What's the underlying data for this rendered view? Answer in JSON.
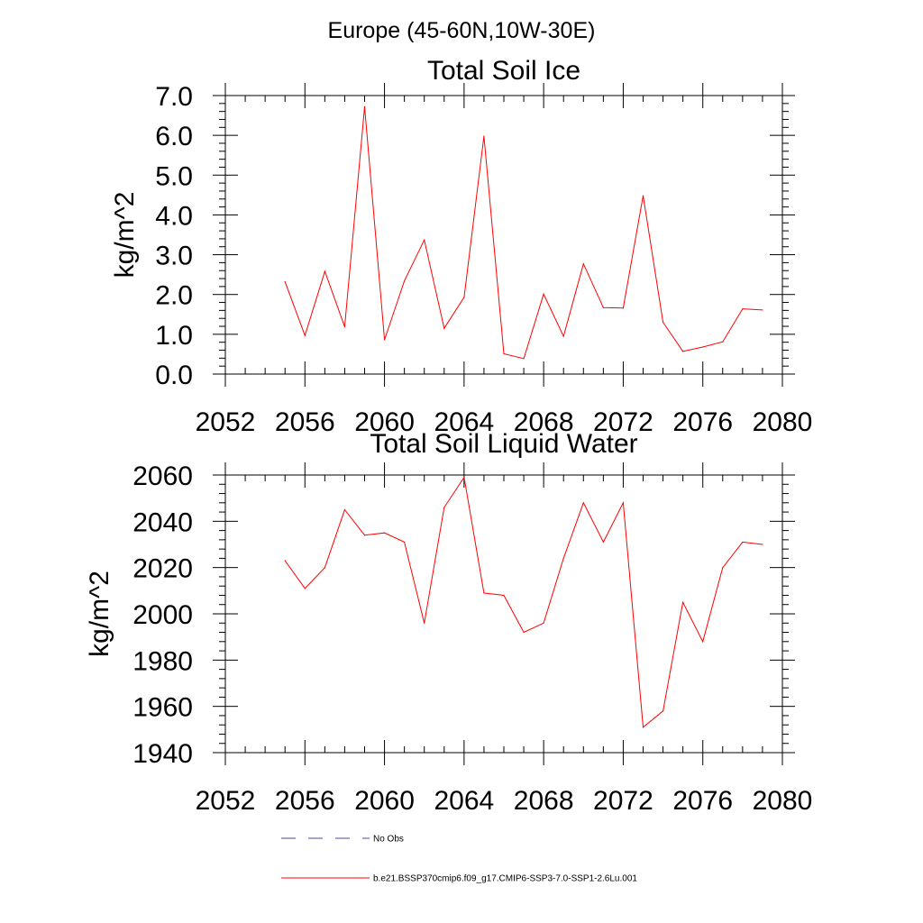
{
  "suptitle": "Europe (45-60N,10W-30E)",
  "legend": {
    "items": [
      {
        "label": "No Obs",
        "color": "#4a4aa8",
        "dash": true
      },
      {
        "label": "b.e21.BSSP370cmip6.f09_g17.CMIP6-SSP3-7.0-SSP1-2.6Lu.001",
        "color": "#ff0000",
        "dash": false
      }
    ]
  },
  "chart_data": [
    {
      "type": "line",
      "title": "Total Soil Ice",
      "xlabel": "",
      "ylabel": "kg/m^2",
      "xlim": [
        2052,
        2080
      ],
      "ylim": [
        0,
        7
      ],
      "xticks": [
        2052,
        2056,
        2060,
        2064,
        2068,
        2072,
        2076,
        2080
      ],
      "yticks": [
        "0.0",
        "1.0",
        "2.0",
        "3.0",
        "4.0",
        "5.0",
        "6.0",
        "7.0"
      ],
      "grid": false,
      "series": [
        {
          "color": "#ff0000",
          "x": [
            2055,
            2056,
            2057,
            2058,
            2059,
            2060,
            2061,
            2062,
            2063,
            2064,
            2065,
            2066,
            2067,
            2068,
            2069,
            2070,
            2071,
            2072,
            2073,
            2074,
            2075,
            2076,
            2077,
            2078,
            2079
          ],
          "values": [
            2.32,
            0.97,
            2.58,
            1.19,
            6.72,
            0.86,
            2.34,
            3.37,
            1.15,
            1.93,
            5.98,
            0.51,
            0.39,
            2.01,
            0.95,
            2.77,
            1.67,
            1.66,
            4.48,
            1.3,
            0.57,
            0.68,
            0.81,
            1.64,
            1.61
          ]
        }
      ]
    },
    {
      "type": "line",
      "title": "Total Soil Liquid Water",
      "xlabel": "",
      "ylabel": "kg/m^2",
      "xlim": [
        2052,
        2080
      ],
      "ylim": [
        1940,
        2060
      ],
      "xticks": [
        2052,
        2056,
        2060,
        2064,
        2068,
        2072,
        2076,
        2080
      ],
      "yticks": [
        "1940",
        "1960",
        "1980",
        "2000",
        "2020",
        "2040",
        "2060"
      ],
      "grid": false,
      "series": [
        {
          "color": "#ff0000",
          "x": [
            2055,
            2056,
            2057,
            2058,
            2059,
            2060,
            2061,
            2062,
            2063,
            2064,
            2065,
            2066,
            2067,
            2068,
            2069,
            2070,
            2071,
            2072,
            2073,
            2074,
            2075,
            2076,
            2077,
            2078,
            2079
          ],
          "values": [
            2023,
            2011,
            2020,
            2045,
            2034,
            2035,
            2031,
            1996,
            2046,
            2059,
            2009,
            2008,
            1992,
            1996,
            2024,
            2048,
            2031,
            2048,
            1951,
            1958,
            2005,
            1988,
            2020,
            2031,
            2030
          ]
        }
      ]
    }
  ]
}
